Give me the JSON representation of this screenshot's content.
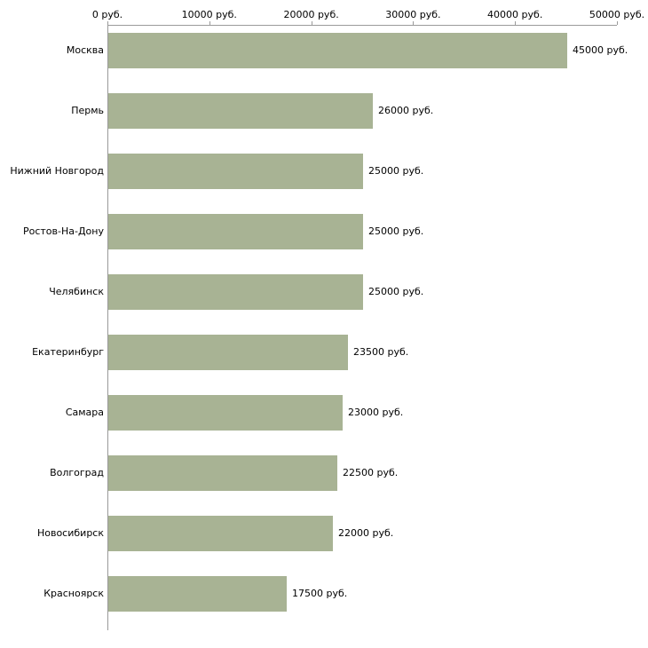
{
  "chart_data": {
    "type": "bar",
    "orientation": "horizontal",
    "title": "",
    "xlabel": "",
    "ylabel": "",
    "categories": [
      "Москва",
      "Пермь",
      "Нижний Новгород",
      "Ростов-На-Дону",
      "Челябинск",
      "Екатеринбург",
      "Самара",
      "Волгоград",
      "Новосибирск",
      "Красноярск"
    ],
    "values": [
      45000,
      26000,
      25000,
      25000,
      25000,
      23500,
      23000,
      22500,
      22000,
      17500
    ],
    "value_labels": [
      "45000 руб.",
      "26000 руб.",
      "25000 руб.",
      "25000 руб.",
      "25000 руб.",
      "23500 руб.",
      "23000 руб.",
      "22500 руб.",
      "22000 руб.",
      "17500 руб."
    ],
    "x_ticks": [
      0,
      10000,
      20000,
      30000,
      40000,
      50000
    ],
    "x_tick_labels": [
      "0 руб.",
      "10000 руб.",
      "20000 руб.",
      "30000 руб.",
      "40000 руб.",
      "50000 руб."
    ],
    "xlim": [
      0,
      50000
    ],
    "grid": false,
    "legend": "none",
    "bar_color": "#a8b394",
    "axis_color": "#9a9a9a",
    "text_color": "#000000"
  }
}
